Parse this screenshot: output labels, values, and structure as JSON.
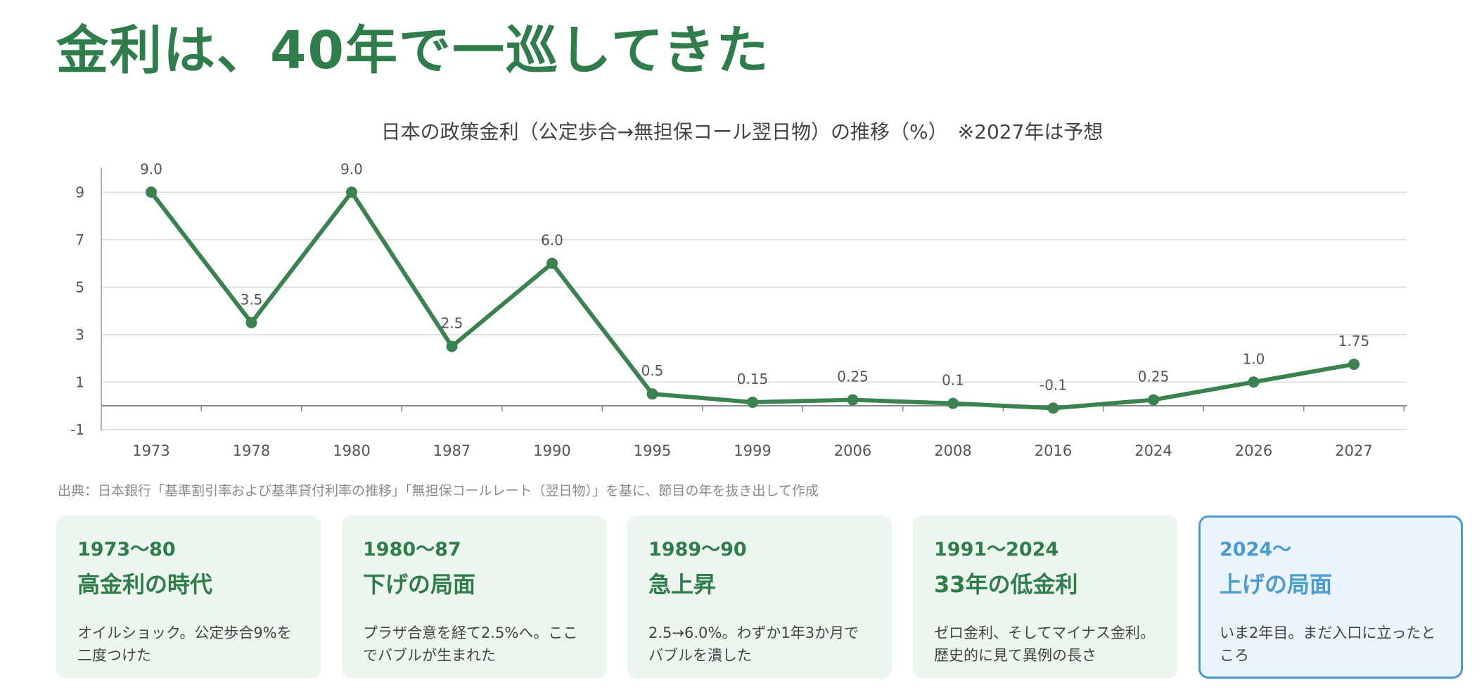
{
  "page_title": "金利は、40年で一巡してきた",
  "chart_data": {
    "type": "line",
    "title": "日本の政策金利（公定歩合→無担保コール翌日物）の推移（%）　※2027年は予想",
    "categories": [
      "1973",
      "1978",
      "1980",
      "1987",
      "1990",
      "1995",
      "1999",
      "2006",
      "2008",
      "2016",
      "2024",
      "2026",
      "2027"
    ],
    "values": [
      9.0,
      3.5,
      9.0,
      2.5,
      6.0,
      0.5,
      0.15,
      0.25,
      0.1,
      -0.1,
      0.25,
      1.0,
      1.75
    ],
    "data_labels": [
      "9.0",
      "3.5",
      "9.0",
      "2.5",
      "6.0",
      "0.5",
      "0.15",
      "0.25",
      "0.1",
      "-0.1",
      "0.25",
      "1.0",
      "1.75"
    ],
    "y_ticks": [
      9,
      7,
      5,
      3,
      1,
      -1
    ],
    "ylim": [
      -1,
      10
    ],
    "grid": true,
    "line_color": "#3a8250"
  },
  "source_note": "出典：日本銀行「基準割引率および基準貸付利率の推移」「無担保コールレート（翌日物）」を基に、節目の年を抜き出して作成",
  "cards": [
    {
      "period": "1973〜80",
      "heading": "高金利の時代",
      "desc": "オイルショック。公定歩合9%を二度つけた"
    },
    {
      "period": "1980〜87",
      "heading": "下げの局面",
      "desc": "プラザ合意を経て2.5%へ。ここでバブルが生まれた"
    },
    {
      "period": "1989〜90",
      "heading": "急上昇",
      "desc": "2.5→6.0%。わずか1年3か月でバブルを潰した"
    },
    {
      "period": "1991〜2024",
      "heading": "33年の低金利",
      "desc": "ゼロ金利、そしてマイナス金利。歴史的に見て異例の長さ"
    },
    {
      "period": "2024〜",
      "heading": "上げの局面",
      "desc": "いま2年目。まだ入口に立ったところ"
    }
  ],
  "colors": {
    "green": "#2e7d4a",
    "blue": "#4a9bd1"
  }
}
